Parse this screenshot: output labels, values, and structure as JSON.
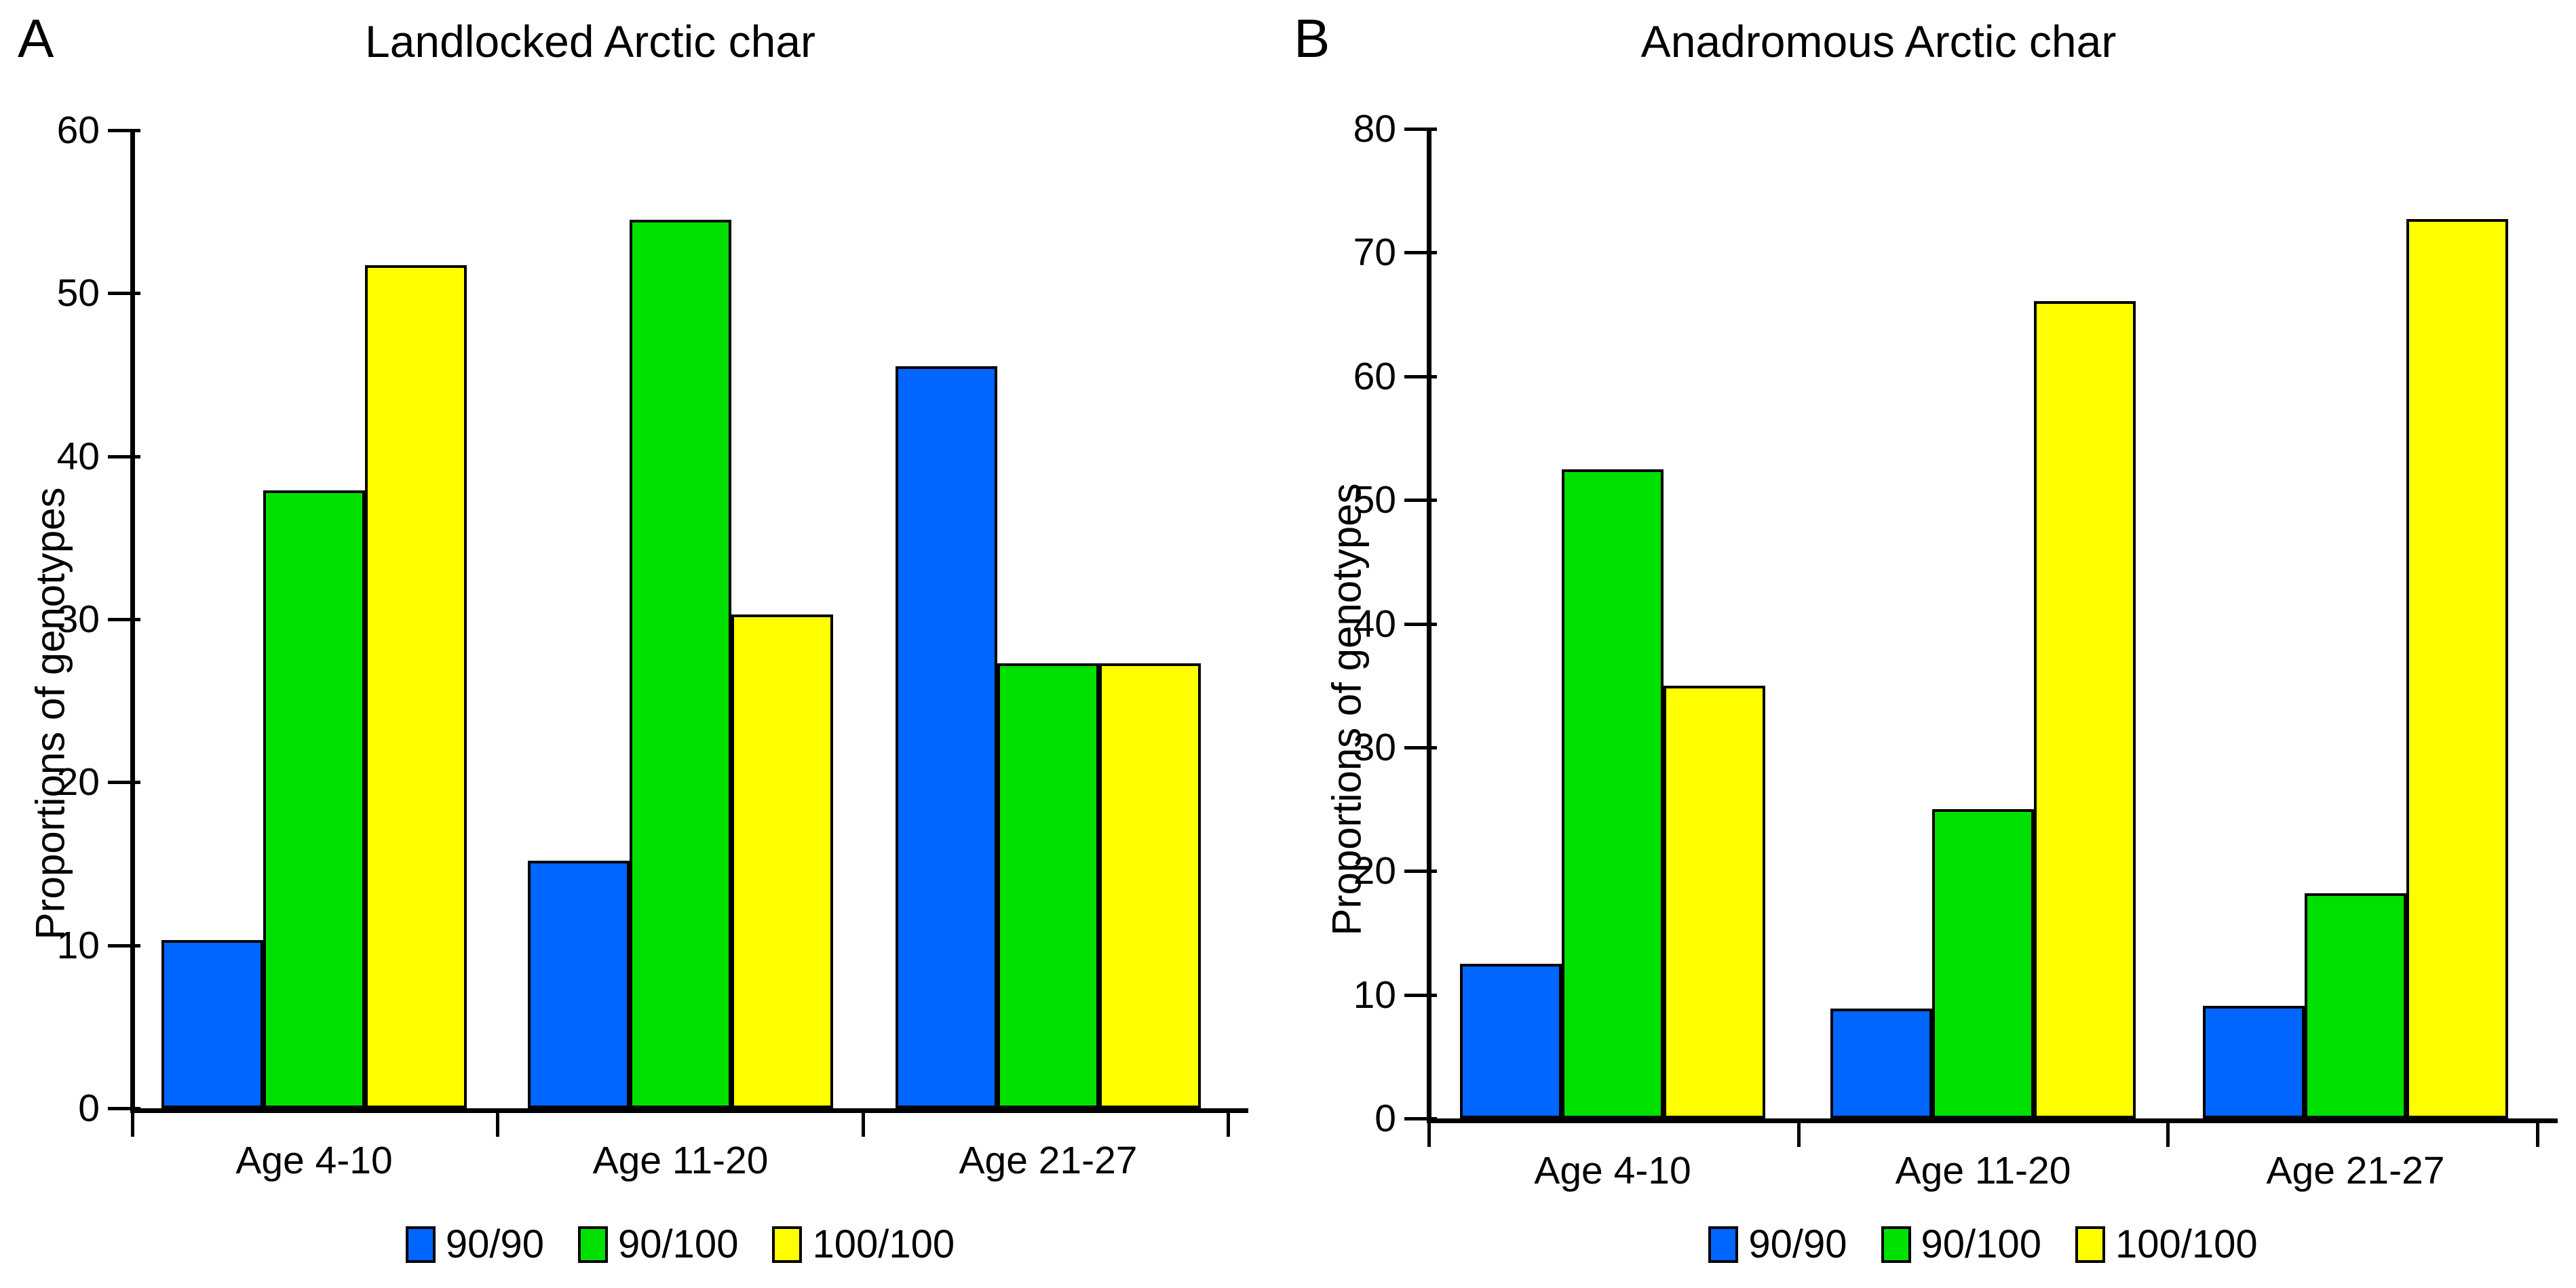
{
  "panels": [
    {
      "letter": "A"
    },
    {
      "letter": "B"
    }
  ],
  "chart_data": [
    {
      "type": "bar",
      "title": "Landlocked Arctic char",
      "xlabel": "",
      "ylabel": "Proportions of genotypes",
      "ylim": [
        0,
        60
      ],
      "ytick_step": 10,
      "grid": false,
      "legend_position": "bottom",
      "categories": [
        "Age 4-10",
        "Age 11-20",
        "Age 21-27"
      ],
      "series": [
        {
          "name": "90/90",
          "color": "#0066FF",
          "values": [
            10.3,
            15.2,
            45.5
          ]
        },
        {
          "name": "90/100",
          "color": "#00E000",
          "values": [
            37.9,
            54.5,
            27.3
          ]
        },
        {
          "name": "100/100",
          "color": "#FFFF00",
          "values": [
            51.7,
            30.3,
            27.3
          ]
        }
      ]
    },
    {
      "type": "bar",
      "title": "Anadromous Arctic char",
      "xlabel": "",
      "ylabel": "Proportions of genotypes",
      "ylim": [
        0,
        80
      ],
      "ytick_step": 10,
      "grid": false,
      "legend_position": "bottom",
      "categories": [
        "Age 4-10",
        "Age 11-20",
        "Age 21-27"
      ],
      "series": [
        {
          "name": "90/90",
          "color": "#0066FF",
          "values": [
            12.5,
            8.9,
            9.1
          ]
        },
        {
          "name": "90/100",
          "color": "#00E000",
          "values": [
            52.5,
            25.0,
            18.2
          ]
        },
        {
          "name": "100/100",
          "color": "#FFFF00",
          "values": [
            35.0,
            66.1,
            72.7
          ]
        }
      ]
    }
  ]
}
